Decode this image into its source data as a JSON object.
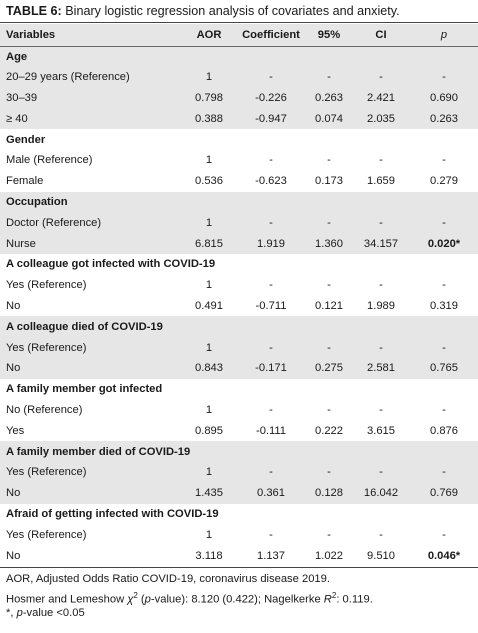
{
  "table": {
    "title_label": "TABLE 6:",
    "title_text": " Binary logistic regression analysis of covariates and anxiety.",
    "columns": [
      "Variables",
      "AOR",
      "Coefficient",
      "95%",
      "CI",
      "p"
    ],
    "rows": [
      {
        "type": "group",
        "label": "Age"
      },
      {
        "type": "data",
        "label": "20–29 years (Reference)",
        "aor": "1",
        "coef": "-",
        "lo": "-",
        "hi": "-",
        "p": "-"
      },
      {
        "type": "data",
        "label": "30–39",
        "aor": "0.798",
        "coef": "-0.226",
        "lo": "0.263",
        "hi": "2.421",
        "p": "0.690"
      },
      {
        "type": "data",
        "label": "≥ 40",
        "aor": "0.388",
        "coef": "-0.947",
        "lo": "0.074",
        "hi": "2.035",
        "p": "0.263"
      },
      {
        "type": "group",
        "label": "Gender"
      },
      {
        "type": "data",
        "label": "Male (Reference)",
        "aor": "1",
        "coef": "-",
        "lo": "-",
        "hi": "-",
        "p": "-"
      },
      {
        "type": "data",
        "label": "Female",
        "aor": "0.536",
        "coef": "-0.623",
        "lo": "0.173",
        "hi": "1.659",
        "p": "0.279"
      },
      {
        "type": "group",
        "label": "Occupation"
      },
      {
        "type": "data",
        "label": "Doctor (Reference)",
        "aor": "1",
        "coef": "-",
        "lo": "-",
        "hi": "-",
        "p": "-"
      },
      {
        "type": "data",
        "label": "Nurse",
        "aor": "6.815",
        "coef": "1.919",
        "lo": "1.360",
        "hi": "34.157",
        "p": "0.020*",
        "p_bold": true
      },
      {
        "type": "group",
        "label": "A colleague got infected with COVID-19"
      },
      {
        "type": "data",
        "label": "Yes (Reference)",
        "aor": "1",
        "coef": "-",
        "lo": "-",
        "hi": "-",
        "p": "-"
      },
      {
        "type": "data",
        "label": "No",
        "aor": "0.491",
        "coef": "-0.711",
        "lo": "0.121",
        "hi": "1.989",
        "p": "0.319"
      },
      {
        "type": "group",
        "label": "A colleague died of COVID-19"
      },
      {
        "type": "data",
        "label": "Yes (Reference)",
        "aor": "1",
        "coef": "-",
        "lo": "-",
        "hi": "-",
        "p": "-"
      },
      {
        "type": "data",
        "label": "No",
        "aor": "0.843",
        "coef": "-0.171",
        "lo": "0.275",
        "hi": "2.581",
        "p": "0.765"
      },
      {
        "type": "group",
        "label": "A family member got infected"
      },
      {
        "type": "data",
        "label": "No (Reference)",
        "aor": "1",
        "coef": "-",
        "lo": "-",
        "hi": "-",
        "p": "-"
      },
      {
        "type": "data",
        "label": "Yes",
        "aor": "0.895",
        "coef": "-0.111",
        "lo": "0.222",
        "hi": "3.615",
        "p": "0.876"
      },
      {
        "type": "group",
        "label": "A family member died of COVID-19"
      },
      {
        "type": "data",
        "label": "Yes (Reference)",
        "aor": "1",
        "coef": "-",
        "lo": "-",
        "hi": "-",
        "p": "-"
      },
      {
        "type": "data",
        "label": "No",
        "aor": "1.435",
        "coef": "0.361",
        "lo": "0.128",
        "hi": "16.042",
        "p": "0.769"
      },
      {
        "type": "group",
        "label": "Afraid of getting infected with COVID-19"
      },
      {
        "type": "data",
        "label": "Yes (Reference)",
        "aor": "1",
        "coef": "-",
        "lo": "-",
        "hi": "-",
        "p": "-"
      },
      {
        "type": "data",
        "label": "No",
        "aor": "3.118",
        "coef": "1.137",
        "lo": "1.022",
        "hi": "9.510",
        "p": "0.046*",
        "p_bold": true
      }
    ]
  },
  "footnotes": {
    "line1": "AOR, Adjusted Odds Ratio COVID-19, coronavirus disease 2019.",
    "line2_a": "Hosmer and Lemeshow ",
    "line2_chi": "χ",
    "line2_sup": "2",
    "line2_b": " (",
    "line2_pvar": "p",
    "line2_c": "-value): 8.120 (0.422); Nagelkerke ",
    "line2_r": "R",
    "line2_rsup": "2",
    "line2_d": ": 0.119.",
    "line3_a": "*, ",
    "line3_pvar": "p",
    "line3_b": "-value <0.05"
  },
  "colors": {
    "shade": "#e6e6e6",
    "rule": "#444444"
  }
}
